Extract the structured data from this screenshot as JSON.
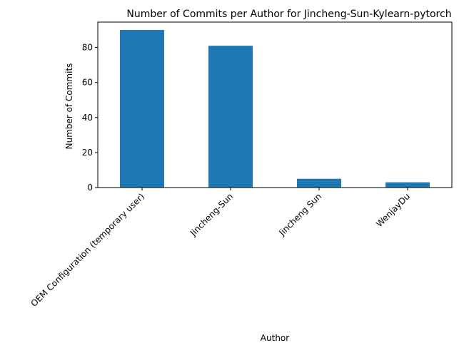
{
  "chart_data": {
    "type": "bar",
    "title": "Number of Commits per Author for Jincheng-Sun-Kylearn-pytorch",
    "xlabel": "Author",
    "ylabel": "Number of Commits",
    "categories": [
      "OEM Configuration (temporary user)",
      "Jincheng-Sun",
      "Jincheng Sun",
      "WenjayDu"
    ],
    "values": [
      90,
      81,
      5,
      3
    ],
    "ylim": [
      0,
      94.5
    ],
    "yticks": [
      0,
      20,
      40,
      60,
      80
    ],
    "grid": false,
    "legend": "none",
    "bar_color": "#1f77b4"
  }
}
